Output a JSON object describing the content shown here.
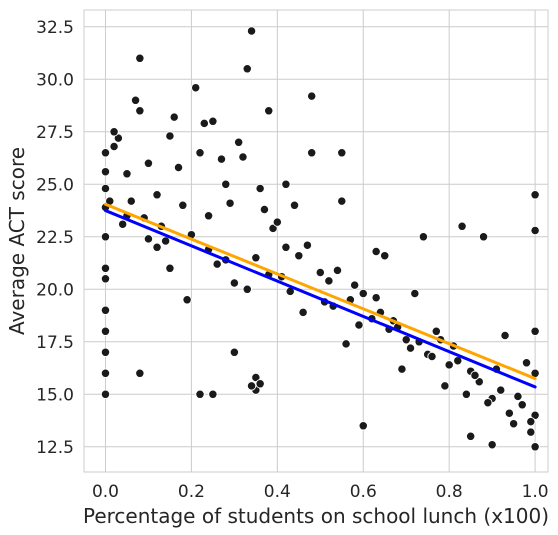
{
  "chart_data": {
    "type": "scatter",
    "title": "",
    "xlabel": "Percentage of students on school lunch (x100)",
    "ylabel": "Average ACT score",
    "xlim": [
      -0.05,
      1.03
    ],
    "ylim": [
      11.3,
      33.3
    ],
    "x_ticks": [
      0.0,
      0.2,
      0.4,
      0.6,
      0.8,
      1.0
    ],
    "x_tick_labels": [
      "0.0",
      "0.2",
      "0.4",
      "0.6",
      "0.8",
      "1.0"
    ],
    "y_ticks": [
      12.5,
      15.0,
      17.5,
      20.0,
      22.5,
      25.0,
      27.5,
      30.0,
      32.5
    ],
    "y_tick_labels": [
      "12.5",
      "15.0",
      "17.5",
      "20.0",
      "22.5",
      "25.0",
      "27.5",
      "30.0",
      "32.5"
    ],
    "grid": true,
    "legend": "none",
    "colors": {
      "points": "#1a1a1a",
      "point_edge": "#ffffff",
      "fit_line_blue": "#0000ff",
      "fit_line_orange": "#ffa500",
      "grid": "#cccccc",
      "axes_edge": "#cccccc"
    },
    "lines": [
      {
        "x": [
          0.0,
          1.0
        ],
        "y": [
          23.75,
          15.35
        ],
        "color": "#0000ff"
      },
      {
        "x": [
          0.0,
          1.0
        ],
        "y": [
          24.05,
          15.75
        ],
        "color": "#ffa500"
      }
    ],
    "points": {
      "x": [
        0.0,
        0.0,
        0.0,
        0.0,
        0.0,
        0.0,
        0.0,
        0.0,
        0.0,
        0.0,
        0.0,
        0.0,
        0.02,
        0.03,
        0.05,
        0.06,
        0.08,
        0.08,
        0.1,
        0.12,
        0.13,
        0.15,
        0.17,
        0.18,
        0.2,
        0.21,
        0.22,
        0.23,
        0.24,
        0.25,
        0.27,
        0.28,
        0.29,
        0.31,
        0.32,
        0.33,
        0.34,
        0.35,
        0.35,
        0.36,
        0.37,
        0.38,
        0.39,
        0.4,
        0.42,
        0.44,
        0.45,
        0.47,
        0.48,
        0.5,
        0.52,
        0.54,
        0.55,
        0.57,
        0.58,
        0.6,
        0.62,
        0.63,
        0.65,
        0.67,
        0.68,
        0.7,
        0.72,
        0.73,
        0.75,
        0.77,
        0.78,
        0.8,
        0.82,
        0.83,
        0.85,
        0.87,
        0.88,
        0.9,
        0.92,
        0.93,
        0.95,
        0.97,
        0.98,
        1.0,
        1.0,
        1.0,
        1.0,
        1.0,
        1.0,
        0.08,
        0.12,
        0.22,
        0.25,
        0.3,
        0.34,
        0.48,
        0.35,
        0.36,
        0.6,
        0.85,
        0.9,
        0.99,
        0.07,
        0.02,
        0.16,
        0.42,
        0.55,
        0.63,
        0.74,
        0.05,
        0.1,
        0.15,
        0.19,
        0.26,
        0.3,
        0.41,
        0.46,
        0.53,
        0.56,
        0.66,
        0.69,
        0.76,
        0.79,
        0.84,
        0.89,
        0.94,
        0.96,
        0.99,
        0.01,
        0.04,
        0.09,
        0.14,
        0.24,
        0.28,
        0.33,
        0.38,
        0.43,
        0.51,
        0.59,
        0.64,
        0.71,
        0.81,
        0.86,
        0.91
      ],
      "y": [
        26.5,
        25.6,
        24.8,
        23.9,
        22.5,
        21.0,
        20.5,
        19.0,
        18.0,
        17.0,
        16.0,
        15.0,
        26.8,
        27.2,
        25.5,
        24.2,
        28.5,
        31.0,
        26.0,
        24.5,
        23.0,
        27.3,
        25.8,
        24.0,
        22.6,
        29.6,
        26.5,
        27.9,
        23.5,
        28.0,
        26.2,
        25.0,
        24.1,
        27.0,
        26.3,
        30.5,
        32.3,
        21.5,
        15.2,
        24.8,
        23.8,
        28.5,
        22.9,
        23.2,
        22.0,
        24.0,
        21.6,
        22.1,
        29.2,
        20.8,
        20.4,
        20.9,
        26.5,
        19.5,
        20.2,
        19.8,
        18.6,
        19.6,
        21.6,
        18.5,
        18.2,
        17.6,
        19.8,
        17.5,
        16.9,
        18.0,
        17.6,
        16.4,
        16.6,
        23.0,
        16.1,
        15.6,
        22.5,
        14.8,
        15.2,
        17.8,
        13.6,
        14.5,
        16.5,
        24.5,
        22.8,
        18.0,
        16.0,
        14.0,
        12.5,
        16.0,
        22.0,
        15.0,
        15.0,
        17.0,
        15.4,
        26.5,
        15.8,
        15.5,
        13.5,
        13.0,
        12.6,
        13.2,
        29.0,
        27.5,
        28.2,
        25.0,
        24.2,
        21.8,
        22.5,
        23.5,
        22.4,
        21.0,
        19.5,
        21.2,
        20.3,
        20.6,
        18.9,
        19.2,
        17.4,
        18.1,
        16.2,
        16.8,
        15.4,
        15.0,
        14.6,
        14.1,
        14.9,
        13.7,
        24.2,
        23.1,
        23.4,
        22.3,
        21.9,
        21.4,
        20.0,
        20.7,
        19.9,
        19.4,
        18.3,
        18.9,
        17.2,
        17.3,
        15.9,
        16.2
      ]
    }
  }
}
